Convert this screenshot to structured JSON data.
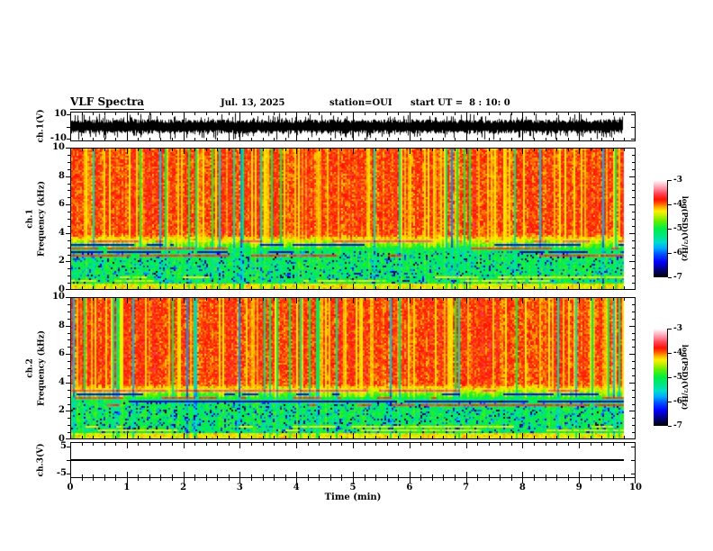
{
  "header": {
    "title": "VLF Spectra",
    "date": "Jul. 13, 2025",
    "station": "station=OUI",
    "start_ut": "start UT =  8 : 10: 0"
  },
  "panels": {
    "ch1_wave": {
      "ylabel": "ch.1(V)",
      "ytick_top": "10",
      "ytick_bottom": "-10"
    },
    "spec1": {
      "channel": "ch.1",
      "ylabel": "Frequency (kHz)",
      "yticks": [
        "10",
        "8",
        "6",
        "4",
        "2",
        "0"
      ]
    },
    "spec2": {
      "channel": "ch.2",
      "ylabel": "Frequency (kHz)",
      "yticks": [
        "10",
        "8",
        "6",
        "4",
        "2",
        "0"
      ]
    },
    "ch3_wave": {
      "ylabel": "ch.3(V)",
      "ytick_top": "5",
      "ytick_bottom": "-5"
    }
  },
  "xaxis": {
    "label": "Time (min)",
    "ticks": [
      "0",
      "1",
      "2",
      "3",
      "4",
      "5",
      "6",
      "7",
      "8",
      "9",
      "10"
    ]
  },
  "colorbar": {
    "label": "log(PSD)(V²/Hz)",
    "ticks": [
      "-3",
      "-4",
      "-5",
      "-6",
      "-7"
    ],
    "gradient_stops": [
      {
        "t": 0.0,
        "color": "#000000"
      },
      {
        "t": 0.08,
        "color": "#000080"
      },
      {
        "t": 0.16,
        "color": "#0000ff"
      },
      {
        "t": 0.24,
        "color": "#0055ff"
      },
      {
        "t": 0.3,
        "color": "#00aaff"
      },
      {
        "t": 0.36,
        "color": "#00ddcc"
      },
      {
        "t": 0.42,
        "color": "#00e688"
      },
      {
        "t": 0.5,
        "color": "#00ee44"
      },
      {
        "t": 0.58,
        "color": "#66ee00"
      },
      {
        "t": 0.64,
        "color": "#ccee00"
      },
      {
        "t": 0.68,
        "color": "#ffee00"
      },
      {
        "t": 0.72,
        "color": "#ffaa00"
      },
      {
        "t": 0.76,
        "color": "#ff5500"
      },
      {
        "t": 0.8,
        "color": "#ff1100"
      },
      {
        "t": 0.86,
        "color": "#ff4455"
      },
      {
        "t": 0.92,
        "color": "#ff99aa"
      },
      {
        "t": 1.0,
        "color": "#ffffff"
      }
    ]
  },
  "chart_data": [
    {
      "type": "line",
      "name": "ch.1 raw voltage waveform",
      "xlabel": "Time (min)",
      "xrange": [
        0,
        10
      ],
      "ylabel": "ch.1(V)",
      "yrange": [
        -10,
        10
      ],
      "yticks": [
        10,
        -10
      ],
      "data_extent_min": [
        0,
        9.8
      ],
      "description": "Dense noisy broadband waveform oscillating about 0 V with typical excursions of ±5 to ±8 V and frequent spikes clipping near ±10 V for the full 0 to ~9.8 min record."
    },
    {
      "type": "heatmap",
      "name": "ch.1 VLF spectrogram",
      "xlabel": "Time (min)",
      "xrange": [
        0,
        10
      ],
      "ylabel": "ch.1 Frequency (kHz)",
      "yrange": [
        0,
        10
      ],
      "yticks": [
        0,
        2,
        4,
        6,
        8,
        10
      ],
      "colorscale_label": "log(PSD)(V²/Hz)",
      "colorscale_range": [
        -7,
        -3
      ],
      "data_extent_min": [
        0,
        9.8
      ],
      "features": [
        "Above ~3.5-4 kHz: intense red (log PSD ~ -3.8 to -4) with dense vertical yellow streaks (~-4.3) and occasional dark-blue vertical dropouts",
        "2.5-3.5 kHz: transition band, green-yellow mix with thin horizontal white and dark interference lines",
        "0.5-2.5 kHz: green (~-5) with cyan/blue patches (~-5.5 to -6.5)",
        "Near 0 kHz: narrow yellow-orange band (~-4.3)"
      ]
    },
    {
      "type": "heatmap",
      "name": "ch.2 VLF spectrogram",
      "xlabel": "Time (min)",
      "xrange": [
        0,
        10
      ],
      "ylabel": "ch.2 Frequency (kHz)",
      "yrange": [
        0,
        10
      ],
      "yticks": [
        0,
        2,
        4,
        6,
        8,
        10
      ],
      "colorscale_label": "log(PSD)(V²/Hz)",
      "colorscale_range": [
        -7,
        -3
      ],
      "data_extent_min": [
        0,
        9.8
      ],
      "features": [
        "Same qualitative structure as ch.1: red field with vertical yellow streaks above ~3.5 kHz, green/cyan below ~3 kHz, yellow band at bottom, horizontal interference lines near 2.5-3.5 kHz"
      ]
    },
    {
      "type": "line",
      "name": "ch.3 voltage",
      "xlabel": "Time (min)",
      "xrange": [
        0,
        10
      ],
      "ylabel": "ch.3(V)",
      "yrange": [
        -5,
        5
      ],
      "yticks": [
        5,
        -5
      ],
      "data_extent_min": [
        0,
        9.8
      ],
      "values": "constant 0 V (flat line) from 0 to ~9.8 min"
    }
  ]
}
